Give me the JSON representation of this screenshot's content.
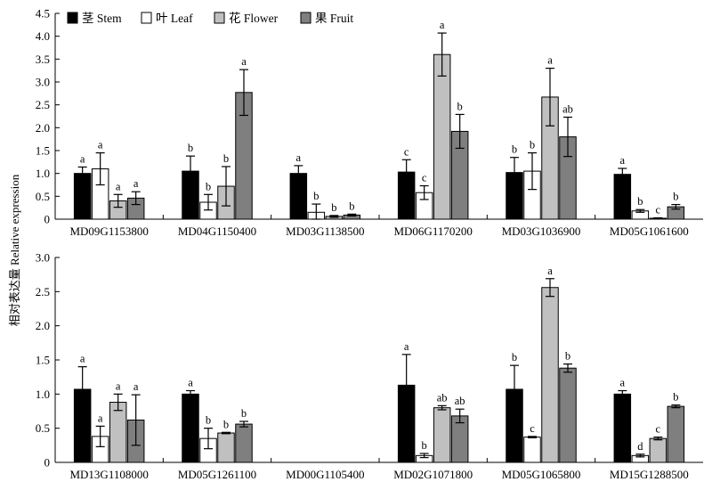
{
  "chart_data": [
    {
      "type": "bar",
      "ylabel": "相对表达量 Relative expression",
      "ylim": [
        0,
        4.5
      ],
      "yticks": [
        "0",
        "0.5",
        "1.0",
        "1.5",
        "2.0",
        "2.5",
        "3.0",
        "3.5",
        "4.0",
        "4.5"
      ],
      "legend_position": "top-left",
      "categories": [
        "MD09G1153800",
        "MD04G1150400",
        "MD03G1138500",
        "MD06G1170200",
        "MD03G1036900",
        "MD05G1061600"
      ],
      "series": [
        {
          "name": "茎 Stem",
          "color": "#000000",
          "values": [
            1.0,
            1.05,
            1.0,
            1.03,
            1.02,
            0.98
          ],
          "errors": [
            0.14,
            0.33,
            0.17,
            0.27,
            0.33,
            0.13
          ],
          "letters": [
            "a",
            "b",
            "a",
            "c",
            "b",
            "a"
          ]
        },
        {
          "name": "叶 Leaf",
          "color": "#ffffff",
          "values": [
            1.1,
            0.37,
            0.15,
            0.58,
            1.05,
            0.18
          ],
          "errors": [
            0.35,
            0.17,
            0.18,
            0.15,
            0.4,
            0.03
          ],
          "letters": [
            "a",
            "b",
            "b",
            "c",
            "b",
            "b"
          ]
        },
        {
          "name": "花 Flower",
          "color": "#c0c0c0",
          "values": [
            0.4,
            0.72,
            0.06,
            3.6,
            2.67,
            0.02
          ],
          "errors": [
            0.14,
            0.43,
            0.02,
            0.47,
            0.63,
            0.01
          ],
          "letters": [
            "a",
            "b",
            "b",
            "a",
            "a",
            "c"
          ]
        },
        {
          "name": "果 Fruit",
          "color": "#7f7f7f",
          "values": [
            0.46,
            2.77,
            0.09,
            1.92,
            1.8,
            0.27
          ],
          "errors": [
            0.14,
            0.5,
            0.02,
            0.37,
            0.43,
            0.05
          ],
          "letters": [
            "a",
            "a",
            "b",
            "b",
            "ab",
            "b"
          ]
        }
      ]
    },
    {
      "type": "bar",
      "ylim": [
        0,
        3.0
      ],
      "yticks": [
        "0",
        "0.5",
        "1.0",
        "1.5",
        "2.0",
        "2.5",
        "3.0"
      ],
      "categories": [
        "MD13G1108000",
        "MD05G1261100",
        "MD00G1105400",
        "MD02G1071800",
        "MD05G1065800",
        "MD15G1288500"
      ],
      "series": [
        {
          "name": "茎 Stem",
          "color": "#000000",
          "values": [
            1.07,
            1.0,
            null,
            1.13,
            1.07,
            1.0
          ],
          "errors": [
            0.33,
            0.05,
            null,
            0.45,
            0.35,
            0.05
          ],
          "letters": [
            "a",
            "a",
            "",
            "a",
            "b",
            "a"
          ]
        },
        {
          "name": "叶 Leaf",
          "color": "#ffffff",
          "values": [
            0.38,
            0.35,
            null,
            0.1,
            0.37,
            0.1
          ],
          "errors": [
            0.15,
            0.15,
            null,
            0.03,
            0.01,
            0.02
          ],
          "letters": [
            "a",
            "b",
            "",
            "b",
            "c",
            "d"
          ]
        },
        {
          "name": "花 Flower",
          "color": "#c0c0c0",
          "values": [
            0.88,
            0.43,
            null,
            0.8,
            2.56,
            0.35
          ],
          "errors": [
            0.12,
            0.01,
            null,
            0.03,
            0.13,
            0.02
          ],
          "letters": [
            "a",
            "b",
            "",
            "ab",
            "a",
            "c"
          ]
        },
        {
          "name": "果 Fruit",
          "color": "#7f7f7f",
          "values": [
            0.62,
            0.56,
            null,
            0.68,
            1.38,
            0.82
          ],
          "errors": [
            0.37,
            0.04,
            null,
            0.1,
            0.06,
            0.02
          ],
          "letters": [
            "a",
            "b",
            "",
            "ab",
            "b",
            "b"
          ]
        }
      ]
    }
  ]
}
